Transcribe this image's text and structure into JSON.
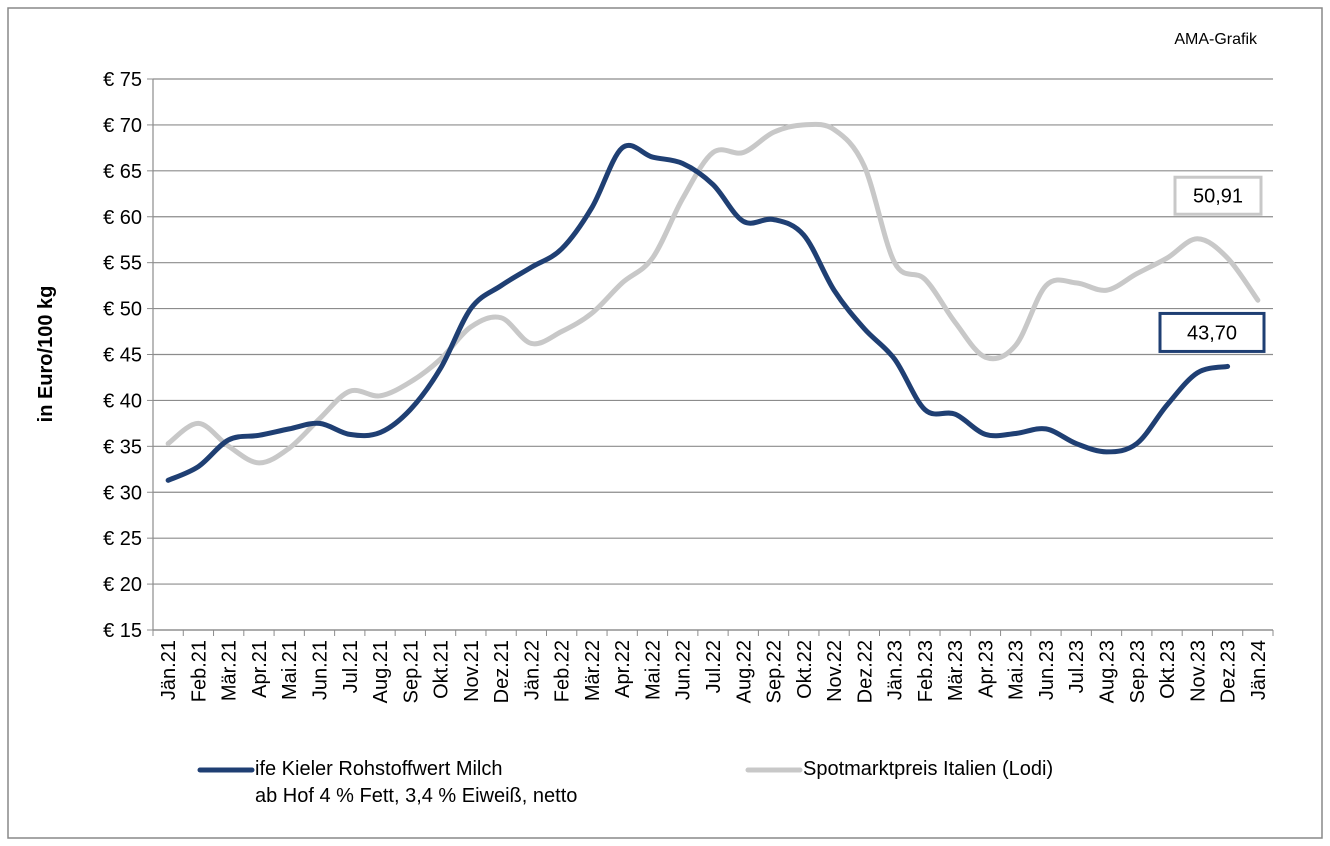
{
  "chart_data": {
    "type": "line",
    "annotation": "AMA-Grafik",
    "y_label": "in Euro/100 kg",
    "categories": [
      "Jän.21",
      "Feb.21",
      "Mär.21",
      "Apr.21",
      "Mai.21",
      "Jun.21",
      "Jul.21",
      "Aug.21",
      "Sep.21",
      "Okt.21",
      "Nov.21",
      "Dez.21",
      "Jän.22",
      "Feb.22",
      "Mär.22",
      "Apr.22",
      "Mai.22",
      "Jun.22",
      "Jul.22",
      "Aug.22",
      "Sep.22",
      "Okt.22",
      "Nov.22",
      "Dez.22",
      "Jän.23",
      "Feb.23",
      "Mär.23",
      "Apr.23",
      "Mai.23",
      "Jun.23",
      "Jul.23",
      "Aug.23",
      "Sep.23",
      "Okt.23",
      "Nov.23",
      "Dez.23",
      "Jän.24"
    ],
    "series": [
      {
        "name": "ife Kieler Rohstoffwert Milch\nab Hof 4 % Fett, 3,4 % Eiweiß, netto",
        "color": "#1f3f73",
        "values": [
          31.3,
          32.8,
          35.7,
          36.2,
          36.9,
          37.5,
          36.3,
          36.5,
          39.0,
          43.5,
          50.0,
          52.5,
          54.5,
          56.5,
          61.0,
          67.5,
          66.5,
          65.8,
          63.5,
          59.5,
          59.7,
          58.0,
          52.0,
          47.8,
          44.5,
          39.0,
          38.5,
          36.3,
          36.4,
          36.9,
          35.3,
          34.4,
          35.3,
          39.5,
          43.0,
          43.7,
          null
        ],
        "value_labels": [
          null,
          null,
          null,
          null,
          null,
          null,
          null,
          null,
          null,
          null,
          null,
          null,
          null,
          null,
          null,
          null,
          null,
          null,
          null,
          null,
          null,
          null,
          null,
          null,
          null,
          null,
          null,
          null,
          null,
          null,
          null,
          null,
          null,
          null,
          null,
          "43,70",
          null
        ]
      },
      {
        "name": "Spotmarktpreis Italien (Lodi)",
        "color": "#c8c8c8",
        "values": [
          35.3,
          37.5,
          35.0,
          33.2,
          34.8,
          38.0,
          41.0,
          40.5,
          42.0,
          44.5,
          48.0,
          49.0,
          46.2,
          47.5,
          49.5,
          52.8,
          55.5,
          62.0,
          67.0,
          67.0,
          69.2,
          70.0,
          69.5,
          65.5,
          55.0,
          53.2,
          48.5,
          44.7,
          46.0,
          52.5,
          52.8,
          52.0,
          53.8,
          55.5,
          57.6,
          55.5,
          50.91
        ],
        "value_labels": [
          null,
          null,
          null,
          null,
          null,
          null,
          null,
          null,
          null,
          null,
          null,
          null,
          null,
          null,
          null,
          null,
          null,
          null,
          null,
          null,
          null,
          null,
          null,
          null,
          null,
          null,
          null,
          null,
          null,
          null,
          null,
          null,
          null,
          null,
          null,
          null,
          "50,91"
        ]
      }
    ],
    "ylim": [
      15,
      75
    ],
    "yticks": [
      {
        "value": 15,
        "label": "€ 15"
      },
      {
        "value": 20,
        "label": "€ 20"
      },
      {
        "value": 25,
        "label": "€ 25"
      },
      {
        "value": 30,
        "label": "€ 30"
      },
      {
        "value": 35,
        "label": "€ 35"
      },
      {
        "value": 40,
        "label": "€ 40"
      },
      {
        "value": 45,
        "label": "€ 45"
      },
      {
        "value": 50,
        "label": "€ 50"
      },
      {
        "value": 55,
        "label": "€ 55"
      },
      {
        "value": 60,
        "label": "€ 60"
      },
      {
        "value": 65,
        "label": "€ 65"
      },
      {
        "value": 70,
        "label": "€ 70"
      },
      {
        "value": 75,
        "label": "€ 75"
      }
    ],
    "grid": true
  }
}
